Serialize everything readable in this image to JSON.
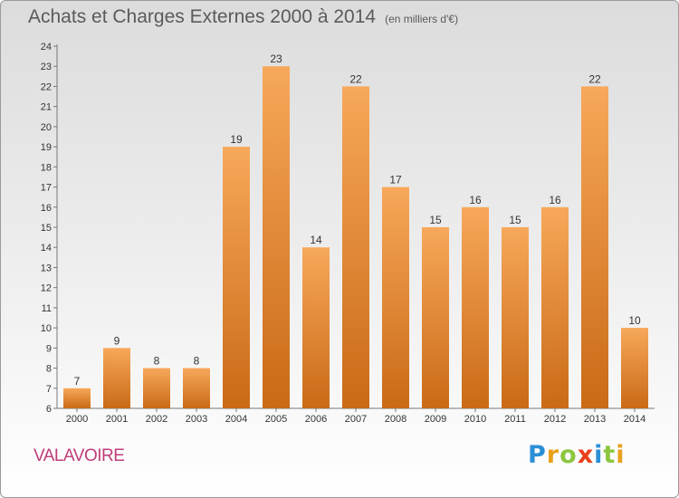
{
  "header": {
    "title": "Achats et Charges Externes 2000 à 2014",
    "subtitle": "(en milliers d'€)"
  },
  "commune": "VALAVOIRE",
  "logo": {
    "text": "Proxiti",
    "letters": [
      {
        "char": "P",
        "color": "#2a8fd6"
      },
      {
        "char": "r",
        "color": "#e8a11c"
      },
      {
        "char": "o",
        "color": "#8cc63f"
      },
      {
        "char": "x",
        "color": "#e8401c"
      },
      {
        "char": "i",
        "color": "#2a8fd6"
      },
      {
        "char": "t",
        "color": "#8cc63f"
      },
      {
        "char": "i",
        "color": "#e8a11c"
      }
    ]
  },
  "colors": {
    "bar_light": "#f7a85a",
    "bar_dark": "#c96a16",
    "axis": "#777777",
    "grid": "#cfcfcf"
  },
  "chart_data": {
    "type": "bar",
    "title": "Achats et Charges Externes 2000 à 2014",
    "subtitle": "(en milliers d'€)",
    "xlabel": "",
    "ylabel": "",
    "categories": [
      "2000",
      "2001",
      "2002",
      "2003",
      "2004",
      "2005",
      "2006",
      "2007",
      "2008",
      "2009",
      "2010",
      "2011",
      "2012",
      "2013",
      "2014"
    ],
    "values": [
      7,
      9,
      8,
      8,
      19,
      23,
      14,
      22,
      17,
      15,
      16,
      15,
      16,
      22,
      10
    ],
    "ylim": [
      6,
      24
    ],
    "yticks": [
      6,
      7,
      8,
      9,
      10,
      11,
      12,
      13,
      14,
      15,
      16,
      17,
      18,
      19,
      20,
      21,
      22,
      23,
      24
    ],
    "grid": false,
    "legend": "none"
  }
}
